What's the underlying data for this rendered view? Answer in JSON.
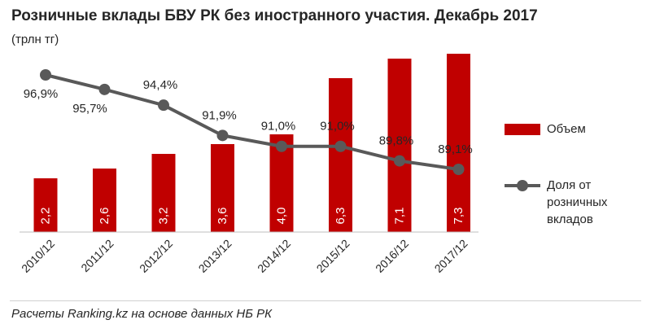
{
  "title": "Розничные вклады БВУ РК без иностранного участия. Декабрь 2017",
  "unit": "(трлн тг)",
  "footer": "Расчеты Ranking.kz на основе данных НБ РК",
  "colors": {
    "bar": "#c00000",
    "line": "#595959",
    "text": "#262626",
    "axis": "#bfbfbf"
  },
  "chart_data": {
    "type": "bar+line",
    "categories": [
      "2010/12",
      "2011/12",
      "2012/12",
      "2013/12",
      "2014/12",
      "2015/12",
      "2016/12",
      "2017/12"
    ],
    "series": [
      {
        "name": "Объем",
        "type": "bar",
        "values": [
          2.2,
          2.6,
          3.2,
          3.6,
          4.0,
          6.3,
          7.1,
          7.3
        ],
        "labels": [
          "2,2",
          "2,6",
          "3,2",
          "3,6",
          "4,0",
          "6,3",
          "7,1",
          "7,3"
        ],
        "ylim": [
          0,
          8
        ]
      },
      {
        "name": "Доля от розничных вкладов",
        "type": "line",
        "values": [
          96.9,
          95.7,
          94.4,
          91.9,
          91.0,
          91.0,
          89.8,
          89.1
        ],
        "labels": [
          "96,9%",
          "95,7%",
          "94,4%",
          "91,9%",
          "91,0%",
          "91,0%",
          "89,8%",
          "89,1%"
        ]
      }
    ],
    "legend": {
      "position": "right",
      "bar_label": "Объем",
      "line_label": "Доля от розничных вкладов"
    }
  }
}
